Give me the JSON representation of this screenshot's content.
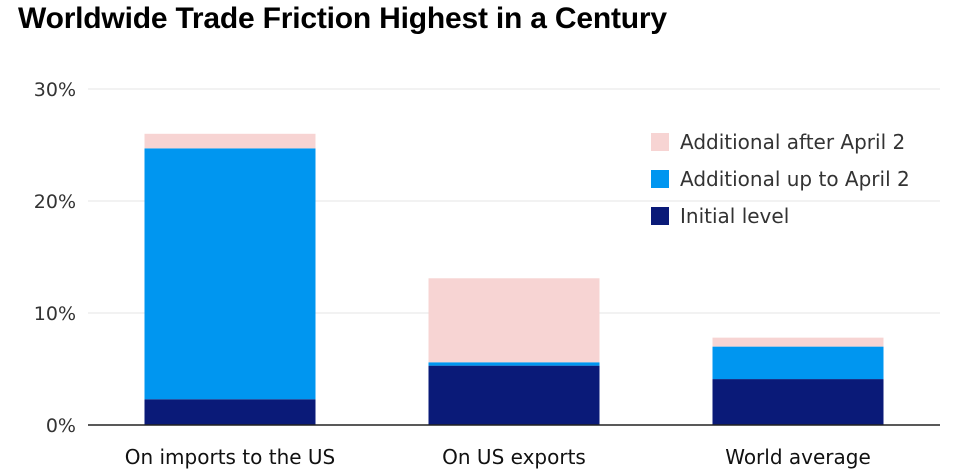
{
  "chart_data": {
    "type": "bar",
    "stacked": true,
    "title": "Worldwide Trade Friction Highest in a Century",
    "xlabel": "",
    "ylabel": "",
    "ylim": [
      0,
      30
    ],
    "yticks": [
      "0%",
      "10%",
      "20%",
      "30%"
    ],
    "ytick_values": [
      0,
      10,
      20,
      30
    ],
    "grid": true,
    "legend_position": "top-right",
    "categories": [
      "On imports to the US",
      "On US exports",
      "World average"
    ],
    "series": [
      {
        "name": "Initial level",
        "color": "#0a1a78",
        "values": [
          2.3,
          5.3,
          4.1
        ]
      },
      {
        "name": "Additional up to April 2",
        "color": "#0096f0",
        "values": [
          22.4,
          0.3,
          2.9
        ]
      },
      {
        "name": "Additional after April 2",
        "color": "#f7d4d3",
        "values": [
          1.3,
          7.5,
          0.8
        ]
      }
    ],
    "legend_order": [
      "Additional after April 2",
      "Additional up to April 2",
      "Initial level"
    ]
  }
}
